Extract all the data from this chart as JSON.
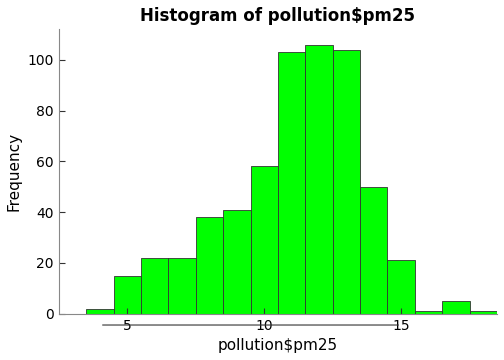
{
  "title": "Histogram of pollution$pm25",
  "xlabel": "pollution$pm25",
  "ylabel": "Frequency",
  "bins": [
    3.5,
    4.5,
    5.5,
    6.5,
    7.5,
    8.5,
    9.5,
    10.5,
    11.5,
    12.5,
    13.5,
    14.5,
    15.5,
    16.5,
    17.5
  ],
  "heights": [
    2,
    15,
    22,
    22,
    38,
    41,
    58,
    103,
    106,
    104,
    50,
    21,
    1,
    5,
    1
  ],
  "bar_color": "#00FF00",
  "bar_edge_color": "#333333",
  "xlim": [
    2.5,
    18.5
  ],
  "ylim": [
    0,
    112
  ],
  "xticks": [
    5,
    10,
    15
  ],
  "yticks": [
    0,
    20,
    40,
    60,
    80,
    100
  ],
  "title_fontsize": 12,
  "label_fontsize": 11,
  "tick_fontsize": 10,
  "bg_color": "#ffffff"
}
